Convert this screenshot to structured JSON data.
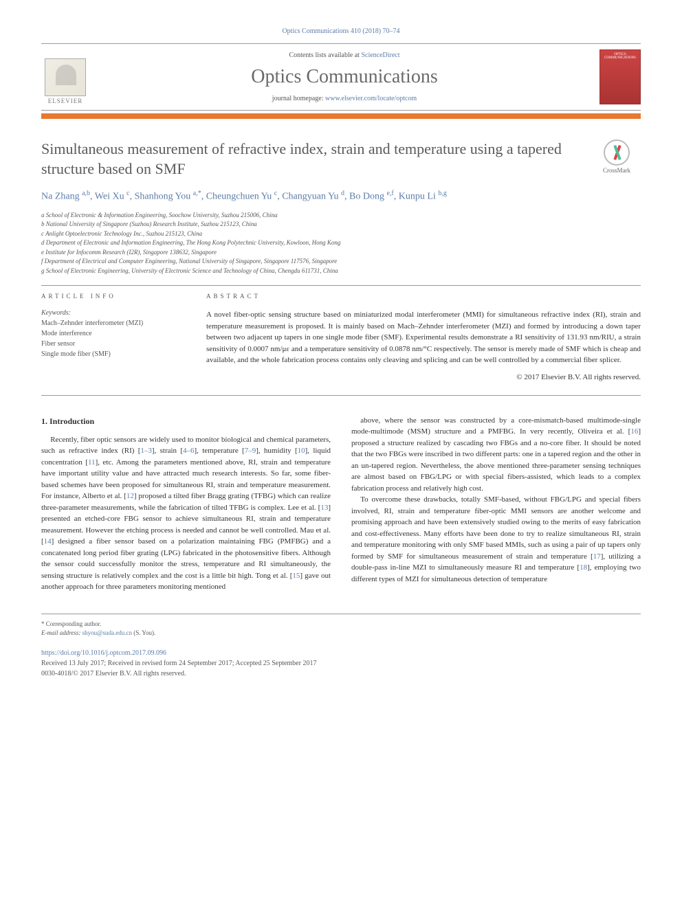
{
  "journal_ref": "Optics Communications 410 (2018) 70–74",
  "header": {
    "contents_line_prefix": "Contents lists available at ",
    "contents_link": "ScienceDirect",
    "journal_name": "Optics Communications",
    "homepage_prefix": "journal homepage: ",
    "homepage_link": "www.elsevier.com/locate/optcom",
    "publisher_label": "ELSEVIER",
    "cover_label": "OPTICS COMMUNICATIONS"
  },
  "crossmark_label": "CrossMark",
  "title": "Simultaneous measurement of refractive index, strain and temperature using a tapered structure based on SMF",
  "authors_html": "Na Zhang <sup>a,b</sup>, Wei Xu <sup>c</sup>, Shanhong You <sup>a,*</sup>, Cheungchuen Yu <sup>c</sup>, Changyuan Yu <sup>d</sup>, Bo Dong <sup>e,f</sup>, Kunpu Li <sup>b,g</sup>",
  "affiliations": [
    "a School of Electronic & Information Engineering, Soochow University, Suzhou 215006, China",
    "b National University of Singapore (Suzhou) Research Institute, Suzhou 215123, China",
    "c Anlight Optoelectronic Technology Inc., Suzhou 215123, China",
    "d Department of Electronic and Information Engineering, The Hong Kong Polytechnic University, Kowloon, Hong Kong",
    "e Institute for Infocomm Research (I2R), Singapore 138632, Singapore",
    "f Department of Electrical and Computer Engineering, National University of Singapore, Singapore 117576, Singapore",
    "g School of Electronic Engineering, University of Electronic Science and Technology of China, Chengdu 611731, China"
  ],
  "article_info": {
    "heading": "ARTICLE INFO",
    "keywords_label": "Keywords:",
    "keywords": [
      "Mach–Zehnder interferometer (MZI)",
      "Mode interference",
      "Fiber sensor",
      "Single mode fiber (SMF)"
    ]
  },
  "abstract": {
    "heading": "ABSTRACT",
    "text": "A novel fiber-optic sensing structure based on miniaturized modal interferometer (MMI) for simultaneous refractive index (RI), strain and temperature measurement is proposed. It is mainly based on Mach–Zehnder interferometer (MZI) and formed by introducing a down taper between two adjacent up tapers in one single mode fiber (SMF). Experimental results demonstrate a RI sensitivity of 131.93 nm/RIU, a strain sensitivity of 0.0007 nm/με and a temperature sensitivity of 0.0878 nm/°C respectively. The sensor is merely made of SMF which is cheap and available, and the whole fabrication process contains only cleaving and splicing and can be well controlled by a commercial fiber splicer.",
    "copyright": "© 2017 Elsevier B.V. All rights reserved."
  },
  "body": {
    "section_heading": "1. Introduction",
    "col1_p1": "Recently, fiber optic sensors are widely used to monitor biological and chemical parameters, such as refractive index (RI) [1–3], strain [4–6], temperature [7–9], humidity [10], liquid concentration [11], etc. Among the parameters mentioned above, RI, strain and temperature have important utility value and have attracted much research interests. So far, some fiber-based schemes have been proposed for simultaneous RI, strain and temperature measurement. For instance, Alberto et al. [12] proposed a tilted fiber Bragg grating (TFBG) which can realize three-parameter measurements, while the fabrication of tilted TFBG is complex. Lee et al. [13] presented an etched-core FBG sensor to achieve simultaneous RI, strain and temperature measurement. However the etching process is needed and cannot be well controlled. Mau et al. [14] designed a fiber sensor based on a polarization maintaining FBG (PMFBG) and a concatenated long period fiber grating (LPG) fabricated in the photosensitive fibers. Although the sensor could successfully monitor the stress, temperature and RI simultaneously, the sensing structure is relatively complex and the cost is a little bit high. Tong et al. [15] gave out another approach for three parameters monitoring mentioned",
    "col2_p1": "above, where the sensor was constructed by a core-mismatch-based multimode-single mode-multimode (MSM) structure and a PMFBG. In very recently, Oliveira et al. [16] proposed a structure realized by cascading two FBGs and a no-core fiber. It should be noted that the two FBGs were inscribed in two different parts: one in a tapered region and the other in an un-tapered region. Nevertheless, the above mentioned three-parameter sensing techniques are almost based on FBG/LPG or with special fibers-assisted, which leads to a complex fabrication process and relatively high cost.",
    "col2_p2": "To overcome these drawbacks, totally SMF-based, without FBG/LPG and special fibers involved, RI, strain and temperature fiber-optic MMI sensors are another welcome and promising approach and have been extensively studied owing to the merits of easy fabrication and cost-effectiveness. Many efforts have been done to try to realize simultaneous RI, strain and temperature monitoring with only SMF based MMIs, such as using a pair of up tapers only formed by SMF for simultaneous measurement of strain and temperature [17], utilizing a double-pass in-line MZI to simultaneously measure RI and temperature [18], employing two different types of MZI for simultaneous detection of temperature"
  },
  "footer": {
    "corr_label": "* Corresponding author.",
    "email_label": "E-mail address: ",
    "email": "shyou@suda.edu.cn",
    "email_suffix": " (S. You).",
    "doi": "https://doi.org/10.1016/j.optcom.2017.09.096",
    "received": "Received 13 July 2017; Received in revised form 24 September 2017; Accepted 25 September 2017",
    "issn_copyright": "0030-4018/© 2017 Elsevier B.V. All rights reserved."
  },
  "colors": {
    "accent_orange": "#e8792e",
    "link_blue": "#5b7ca8",
    "text_gray": "#5a5a5a",
    "cover_red": "#c44444"
  }
}
